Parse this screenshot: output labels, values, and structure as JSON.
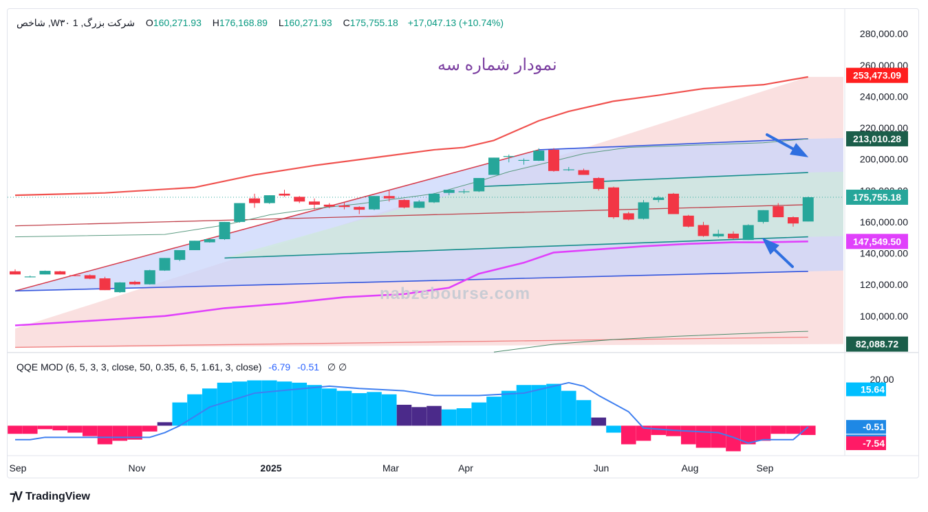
{
  "legend": {
    "symbol": "شاخص ,Wشرکت بزرگ, 1 ۳۰",
    "open_label": "O",
    "open": "160,271.93",
    "high_label": "H",
    "high": "176,168.89",
    "low_label": "L",
    "low": "160,271.93",
    "close_label": "C",
    "close": "175,755.18",
    "change": "+17,047.13 (+10.74%)"
  },
  "annotation_title": "نمودار شماره سه",
  "watermark": "nabzebourse.com",
  "branding": "TradingView",
  "qqe_legend": {
    "name": "QQE MOD (6, 5, 3, 3, close, 50, 0.35, 6, 5, 1.61, 3, close)",
    "value_a": "-6.79",
    "value_b": "-0.51",
    "symbols": "∅  ∅"
  },
  "colors": {
    "up": "#26a69a",
    "down": "#f23645",
    "band_outer": "#f0524f",
    "band_lower": "#e040fb",
    "channel_blue": "#3355dd",
    "channel_teal": "#138c8a",
    "qqe_cyan": "#00bfff",
    "qqe_purple": "#4b2a8a",
    "qqe_pink": "#ff1a66",
    "qqe_line": "#3f7ff0"
  },
  "chart_data": {
    "type": "candlestick",
    "x_ticks": [
      "Sep",
      "Nov",
      "2025",
      "Mar",
      "Apr",
      "Jun",
      "Aug",
      "Sep"
    ],
    "price_axis": {
      "ticks": [
        "280,000.00",
        "260,000.00",
        "240,000.00",
        "220,000.00",
        "200,000.00",
        "180,000.00",
        "160,000.00",
        "140,000.00",
        "120,000.00",
        "100,000.00"
      ],
      "range": [
        78000,
        284000
      ]
    },
    "price_labels": [
      {
        "value": 253473.09,
        "text": "253,473.09",
        "color": "#ff1e1e"
      },
      {
        "value": 213010.28,
        "text": "213,010.28",
        "color": "#1b5e4a"
      },
      {
        "value": 175755.18,
        "text": "175,755.18",
        "color": "#26a69a"
      },
      {
        "value": 147549.5,
        "text": "147,549.50",
        "color": "#e040fb"
      },
      {
        "value": 82088.72,
        "text": "82,088.72",
        "color": "#1b5e4a"
      }
    ],
    "candles": [
      [
        128500,
        129800,
        126500,
        126500
      ],
      [
        125000,
        125800,
        124600,
        125200
      ],
      [
        126500,
        129000,
        126500,
        128800
      ],
      [
        128500,
        128800,
        126500,
        126500
      ],
      [
        126000,
        126500,
        125400,
        125800
      ],
      [
        126000,
        126500,
        123500,
        123800
      ],
      [
        124000,
        125000,
        116500,
        116500
      ],
      [
        115200,
        121600,
        114800,
        121400
      ],
      [
        121800,
        122500,
        119800,
        120200
      ],
      [
        120200,
        129500,
        120000,
        129200
      ],
      [
        129000,
        137000,
        128800,
        137000
      ],
      [
        135800,
        142000,
        135000,
        142000
      ],
      [
        142000,
        148000,
        142000,
        148000
      ],
      [
        147000,
        149500,
        146800,
        149000
      ],
      [
        149000,
        160000,
        148500,
        160000
      ],
      [
        160000,
        172000,
        159500,
        172000
      ],
      [
        175000,
        178000,
        169000,
        172000
      ],
      [
        172000,
        177000,
        171500,
        177000
      ],
      [
        178000,
        180500,
        176000,
        176800
      ],
      [
        176000,
        176500,
        172000,
        173000
      ],
      [
        173000,
        175000,
        168000,
        171000
      ],
      [
        171000,
        172000,
        168800,
        169800
      ],
      [
        170500,
        172500,
        168000,
        169500
      ],
      [
        169500,
        170000,
        165000,
        167800
      ],
      [
        168000,
        176500,
        167500,
        176500
      ],
      [
        176500,
        180000,
        173000,
        175000
      ],
      [
        174000,
        174500,
        168600,
        169200
      ],
      [
        169000,
        174000,
        168800,
        173000
      ],
      [
        172500,
        178500,
        172000,
        178000
      ],
      [
        178500,
        180500,
        177000,
        180500
      ],
      [
        179000,
        181000,
        178000,
        179500
      ],
      [
        179500,
        188000,
        179000,
        188000
      ],
      [
        190000,
        201000,
        190000,
        201000
      ],
      [
        202000,
        203000,
        198000,
        202000
      ],
      [
        199000,
        200500,
        196500,
        199500
      ],
      [
        199000,
        207000,
        198800,
        205500
      ],
      [
        206000,
        207000,
        192000,
        192500
      ],
      [
        193000,
        195000,
        192500,
        193500
      ],
      [
        193000,
        194000,
        190000,
        190000
      ],
      [
        188000,
        188500,
        180000,
        181000
      ],
      [
        182000,
        182500,
        162000,
        163000
      ],
      [
        165500,
        166500,
        161000,
        161500
      ],
      [
        162000,
        174000,
        161500,
        172500
      ],
      [
        174000,
        176500,
        172500,
        175500
      ],
      [
        178000,
        178500,
        165000,
        165000
      ],
      [
        164000,
        164500,
        156500,
        157000
      ],
      [
        158000,
        160000,
        150500,
        151000
      ],
      [
        150800,
        155000,
        150000,
        152400
      ],
      [
        152500,
        154000,
        149000,
        149500
      ],
      [
        148500,
        158500,
        148500,
        158000
      ],
      [
        160000,
        167500,
        159000,
        167500
      ],
      [
        170000,
        172000,
        163000,
        163000
      ],
      [
        163000,
        163500,
        157000,
        159000
      ],
      [
        160271.93,
        176168.89,
        160271.93,
        175755.18
      ]
    ],
    "envelope_upper": [
      [
        0,
        177000
      ],
      [
        6,
        178500
      ],
      [
        12,
        182000
      ],
      [
        16,
        190000
      ],
      [
        20,
        196000
      ],
      [
        24,
        201000
      ],
      [
        28,
        206000
      ],
      [
        30,
        207500
      ],
      [
        32,
        212000
      ],
      [
        35,
        224500
      ],
      [
        37,
        230500
      ],
      [
        40,
        237000
      ],
      [
        43,
        240800
      ],
      [
        46,
        245000
      ],
      [
        50,
        247500
      ],
      [
        53,
        252500
      ]
    ],
    "envelope_lower": [
      [
        0,
        94000
      ],
      [
        6,
        97500
      ],
      [
        10,
        100000
      ],
      [
        14,
        105000
      ],
      [
        18,
        108000
      ],
      [
        22,
        112000
      ],
      [
        26,
        114000
      ],
      [
        29,
        118000
      ],
      [
        31,
        127000
      ],
      [
        34,
        134000
      ],
      [
        36,
        140500
      ],
      [
        39,
        142500
      ],
      [
        42,
        144500
      ],
      [
        45,
        146000
      ],
      [
        48,
        147000
      ],
      [
        50,
        147000
      ],
      [
        53,
        147549.5
      ]
    ],
    "ma_green": [
      [
        0,
        150500
      ],
      [
        10,
        152000
      ],
      [
        14,
        158000
      ],
      [
        17,
        164500
      ],
      [
        20,
        168500
      ],
      [
        23,
        171500
      ],
      [
        28,
        178000
      ],
      [
        31,
        186000
      ],
      [
        33,
        192000
      ],
      [
        35,
        196500
      ],
      [
        38,
        203500
      ],
      [
        41,
        207500
      ],
      [
        44,
        208500
      ],
      [
        47,
        209500
      ],
      [
        50,
        210500
      ],
      [
        53,
        213000
      ]
    ],
    "ma_long": [
      [
        32,
        77000
      ],
      [
        36,
        82000
      ],
      [
        40,
        85000
      ],
      [
        44,
        87000
      ],
      [
        48,
        88500
      ],
      [
        52,
        90000
      ],
      [
        53,
        90200
      ]
    ],
    "channel_upper": [
      [
        35,
        206000
      ],
      [
        53,
        213010.28
      ]
    ],
    "channel_lower": [
      [
        0,
        116000
      ],
      [
        53,
        128500
      ]
    ],
    "mid_teal": [
      [
        31,
        182500
      ],
      [
        53,
        191500
      ]
    ],
    "lower_teal": [
      [
        14,
        137000
      ],
      [
        53,
        150500
      ]
    ],
    "red_base": [
      [
        0,
        116000
      ],
      [
        35,
        206000
      ]
    ],
    "red_mid": [
      [
        0,
        157500
      ],
      [
        53,
        171000
      ]
    ],
    "red_bottom": [
      [
        0,
        80000
      ],
      [
        53,
        86500
      ]
    ],
    "qqe": {
      "range": [
        -12,
        22
      ],
      "ticks": [
        "20.00"
      ],
      "labels": [
        {
          "value": 15.64,
          "text": "15.64",
          "color": "#00bfff"
        },
        {
          "value": -0.51,
          "text": "-0.51",
          "color": "#1e88e5"
        },
        {
          "value": -6.79,
          "text": "-6.79",
          "color": "#1e88e5"
        },
        {
          "value": -7.54,
          "text": "-7.54",
          "color": "#ff1a66"
        }
      ],
      "hist": [
        -3.5,
        -3.5,
        -1.5,
        -2,
        -3,
        -4.5,
        -8,
        -6.5,
        -6,
        -2.5,
        1.5,
        10,
        13.5,
        16,
        18.5,
        19,
        19.5,
        19.5,
        19,
        18.5,
        17.5,
        16,
        15,
        14,
        14.5,
        13.5,
        9,
        8,
        8.5,
        7,
        7.5,
        10,
        12.5,
        15,
        17.5,
        17.5,
        18,
        15,
        11,
        3.5,
        -3,
        -8,
        -6.5,
        -4,
        -4.5,
        -8,
        -9.5,
        -9.5,
        -11,
        -8,
        -6.5,
        -3.5,
        -3.5,
        -4
      ],
      "hist_colors": [
        "p",
        "p",
        "p",
        "p",
        "p",
        "p",
        "p",
        "p",
        "p",
        "p",
        "u",
        "c",
        "c",
        "c",
        "c",
        "c",
        "c",
        "c",
        "c",
        "c",
        "c",
        "c",
        "c",
        "c",
        "c",
        "c",
        "u",
        "u",
        "u",
        "c",
        "c",
        "c",
        "c",
        "c",
        "c",
        "c",
        "c",
        "c",
        "c",
        "u",
        "c",
        "p",
        "p",
        "p",
        "p",
        "p",
        "p",
        "p",
        "p",
        "p",
        "p",
        "p",
        "p",
        "p"
      ],
      "line": [
        [
          0,
          -6
        ],
        [
          1,
          -6
        ],
        [
          2,
          -5
        ],
        [
          5,
          -5
        ],
        [
          9,
          -5
        ],
        [
          10,
          -3
        ],
        [
          11,
          0
        ],
        [
          13,
          8
        ],
        [
          16,
          14
        ],
        [
          21,
          17
        ],
        [
          23,
          16
        ],
        [
          26,
          15
        ],
        [
          28,
          13
        ],
        [
          31,
          13
        ],
        [
          34,
          14
        ],
        [
          36,
          17
        ],
        [
          37,
          18.5
        ],
        [
          38,
          17
        ],
        [
          39,
          13
        ],
        [
          41,
          6
        ],
        [
          42,
          -1
        ],
        [
          44,
          -2
        ],
        [
          47,
          -3
        ],
        [
          48,
          -5
        ],
        [
          49,
          -7.5
        ],
        [
          50,
          -6
        ],
        [
          52,
          -6
        ],
        [
          53,
          -0.51
        ]
      ]
    }
  }
}
